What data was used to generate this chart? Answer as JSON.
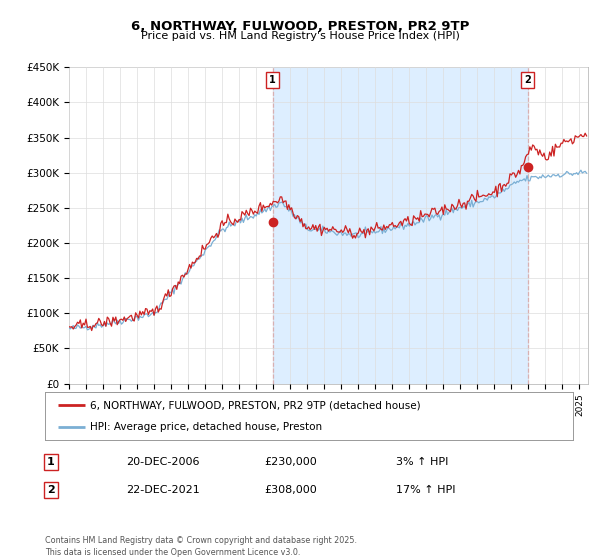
{
  "title": "6, NORTHWAY, FULWOOD, PRESTON, PR2 9TP",
  "subtitle": "Price paid vs. HM Land Registry's House Price Index (HPI)",
  "ylabel_ticks": [
    "£0",
    "£50K",
    "£100K",
    "£150K",
    "£200K",
    "£250K",
    "£300K",
    "£350K",
    "£400K",
    "£450K"
  ],
  "ylim": [
    0,
    450000
  ],
  "xlim_start": 1995.0,
  "xlim_end": 2025.5,
  "hpi_color": "#7bafd4",
  "price_color": "#cc2222",
  "shade_color": "#ddeeff",
  "marker1_date": 2006.96,
  "marker1_price": 230000,
  "marker1_label": "1",
  "marker2_date": 2021.96,
  "marker2_price": 308000,
  "marker2_label": "2",
  "legend_line1": "6, NORTHWAY, FULWOOD, PRESTON, PR2 9TP (detached house)",
  "legend_line2": "HPI: Average price, detached house, Preston",
  "annotation1_date": "20-DEC-2006",
  "annotation1_price": "£230,000",
  "annotation1_hpi": "3% ↑ HPI",
  "annotation2_date": "22-DEC-2021",
  "annotation2_price": "£308,000",
  "annotation2_hpi": "17% ↑ HPI",
  "footer": "Contains HM Land Registry data © Crown copyright and database right 2025.\nThis data is licensed under the Open Government Licence v3.0.",
  "background_color": "#ffffff",
  "grid_color": "#dddddd"
}
